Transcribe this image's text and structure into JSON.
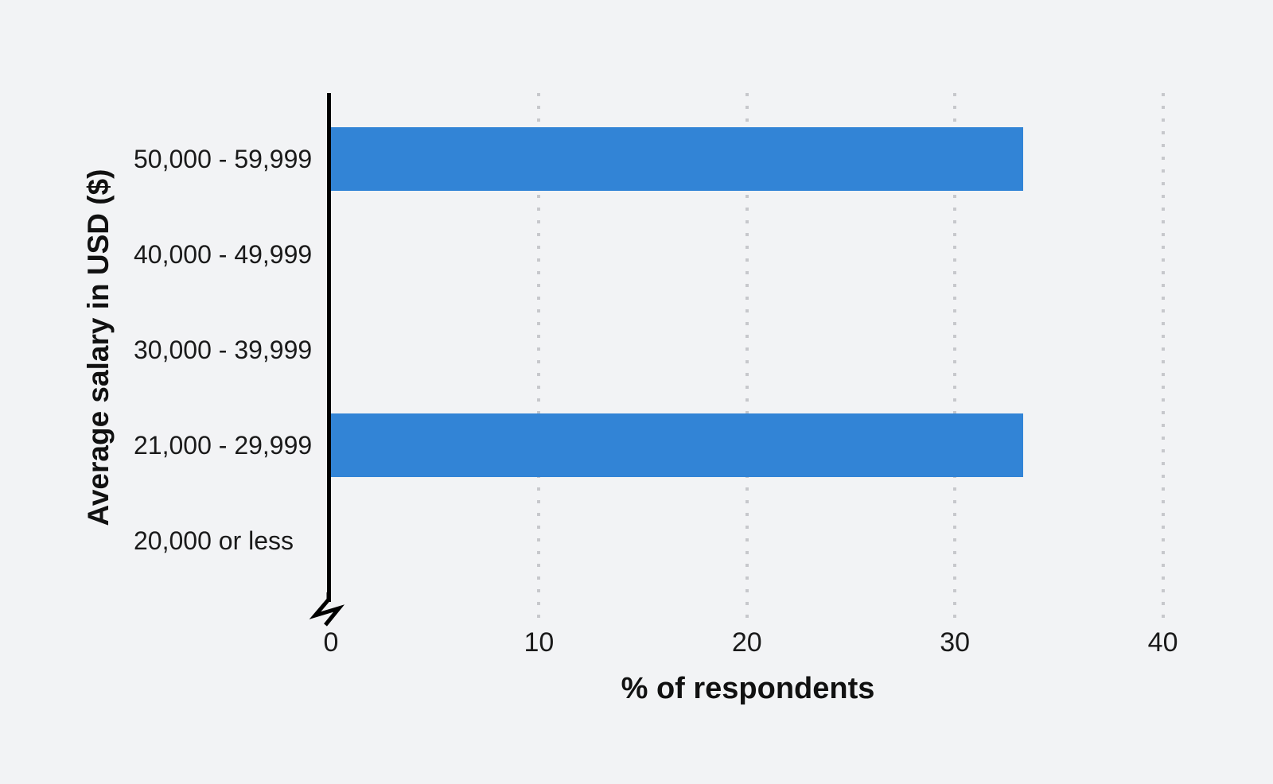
{
  "chart_data": {
    "type": "bar",
    "orientation": "horizontal",
    "categories": [
      "50,000 - 59,999",
      "40,000 - 49,999",
      "30,000 - 39,999",
      "21,000 - 29,999",
      "20,000 or less"
    ],
    "values": [
      33.3,
      0,
      0,
      33.3,
      0
    ],
    "xlabel": "% of respondents",
    "ylabel": "Average salary in USD ($)",
    "x_ticks": [
      0,
      10,
      20,
      30,
      40
    ],
    "xlim": [
      0,
      43
    ],
    "grid": "vertical-dotted",
    "legend": "none",
    "axis_break_at_zero": true,
    "colors": {
      "bar": "#3284d6",
      "background": "#f2f3f5",
      "axis": "#000000",
      "gridline": "#c7c8cc",
      "text": "#1a1a1a"
    }
  }
}
